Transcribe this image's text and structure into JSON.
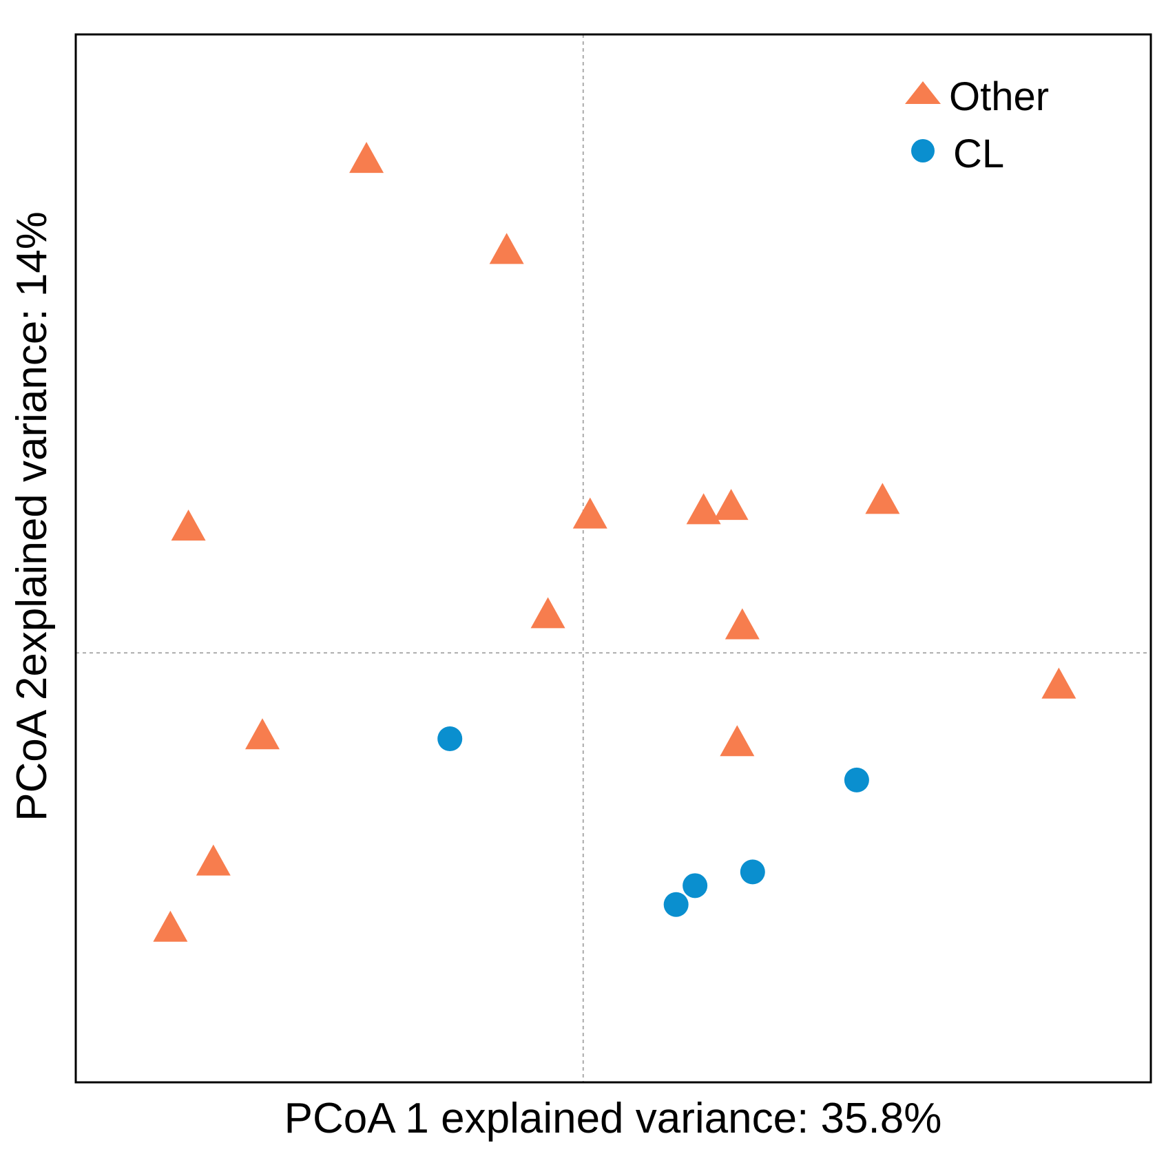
{
  "chart_data": {
    "type": "scatter",
    "title": "",
    "xlabel": "PCoA 1 explained variance: 35.8%",
    "ylabel": "PCoA 2explained variance: 14%",
    "xlim": [
      -0.59,
      0.66
    ],
    "ylim": [
      -0.5,
      0.72
    ],
    "grid": false,
    "reference_lines": {
      "x": 0,
      "y": 0
    },
    "legend_position": "top-right",
    "colors": {
      "Other": "#f77d4e",
      "CL": "#0a8fcf"
    },
    "series": [
      {
        "name": "Other",
        "marker": "triangle",
        "points": [
          {
            "x": -0.252,
            "y": 0.574
          },
          {
            "x": -0.089,
            "y": 0.468
          },
          {
            "x": -0.459,
            "y": 0.146
          },
          {
            "x": 0.008,
            "y": 0.16
          },
          {
            "x": 0.14,
            "y": 0.165
          },
          {
            "x": 0.172,
            "y": 0.17
          },
          {
            "x": 0.348,
            "y": 0.177
          },
          {
            "x": -0.041,
            "y": 0.044
          },
          {
            "x": 0.185,
            "y": 0.031
          },
          {
            "x": 0.553,
            "y": -0.038
          },
          {
            "x": -0.373,
            "y": -0.097
          },
          {
            "x": 0.179,
            "y": -0.105
          },
          {
            "x": -0.43,
            "y": -0.244
          },
          {
            "x": -0.48,
            "y": -0.321
          }
        ]
      },
      {
        "name": "CL",
        "marker": "circle",
        "points": [
          {
            "x": -0.155,
            "y": -0.1
          },
          {
            "x": 0.318,
            "y": -0.148
          },
          {
            "x": 0.197,
            "y": -0.255
          },
          {
            "x": 0.13,
            "y": -0.271
          },
          {
            "x": 0.108,
            "y": -0.293
          }
        ]
      }
    ]
  }
}
